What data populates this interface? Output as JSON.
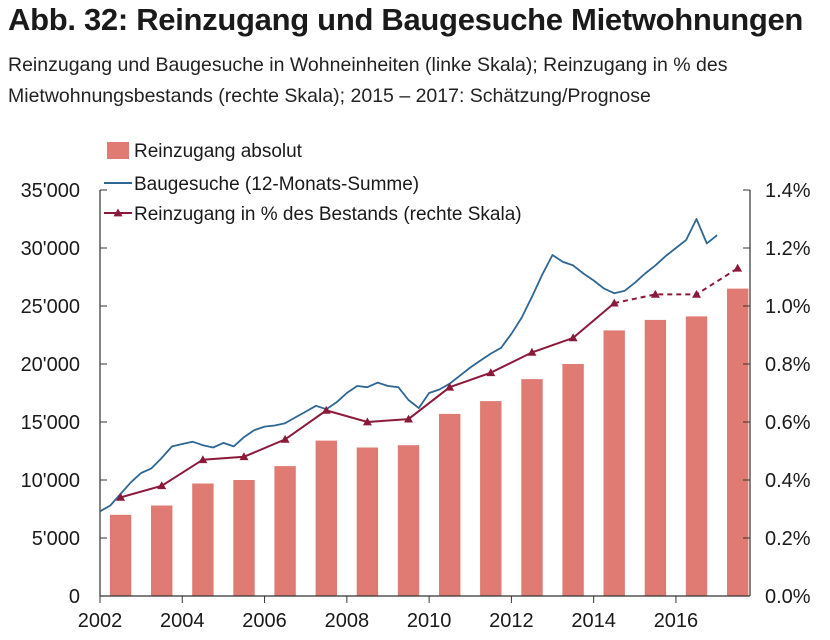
{
  "title": "Abb. 32: Reinzugang und Baugesuche Mietwohnungen",
  "subtitle": "Reinzugang und Baugesuche in Wohneinheiten (linke Skala); Reinzugang in % des Mietwohnungsbestands (rechte Skala); 2015 – 2017: Schätzung/Prognose",
  "chart_data": {
    "type": "bar+line",
    "title": "Abb. 32: Reinzugang und Baugesuche Mietwohnungen",
    "subtitle": "Reinzugang und Baugesuche in Wohneinheiten (linke Skala); Reinzugang in % des Mietwohnungsbestands (rechte Skala); 2015 – 2017: Schätzung/Prognose",
    "legend_position": "top-left",
    "grid": false,
    "x_axis": {
      "range": [
        2002,
        2017.8
      ],
      "tick_labels": [
        "2002",
        "2004",
        "2006",
        "2008",
        "2010",
        "2012",
        "2014",
        "2016"
      ]
    },
    "y_left": {
      "range": [
        0,
        35000
      ],
      "tick_labels": [
        "0",
        "5'000",
        "10'000",
        "15'000",
        "20'000",
        "25'000",
        "30'000",
        "35'000"
      ]
    },
    "y_right": {
      "range": [
        0,
        1.4
      ],
      "tick_labels": [
        "0.0%",
        "0.2%",
        "0.4%",
        "0.6%",
        "0.8%",
        "1.0%",
        "1.2%",
        "1.4%"
      ]
    },
    "bars": {
      "name": "Reinzugang absolut",
      "color": "#e07b73",
      "axis": "left",
      "x": [
        2002.5,
        2003.5,
        2004.5,
        2005.5,
        2006.5,
        2007.5,
        2008.5,
        2009.5,
        2010.5,
        2011.5,
        2012.5,
        2013.5,
        2014.5,
        2015.5,
        2016.5,
        2017.5
      ],
      "values": [
        7000,
        7800,
        9700,
        10000,
        11200,
        13400,
        12800,
        13000,
        15700,
        16800,
        18700,
        20000,
        22900,
        23800,
        24100,
        26500
      ]
    },
    "line": {
      "name": "Baugesuche (12-Monats-Summe)",
      "color": "#2e6694",
      "axis": "left",
      "x": [
        2002.0,
        2002.25,
        2002.5,
        2002.75,
        2003.0,
        2003.25,
        2003.5,
        2003.75,
        2004.0,
        2004.25,
        2004.5,
        2004.75,
        2005.0,
        2005.25,
        2005.5,
        2005.75,
        2006.0,
        2006.25,
        2006.5,
        2006.75,
        2007.0,
        2007.25,
        2007.5,
        2007.75,
        2008.0,
        2008.25,
        2008.5,
        2008.75,
        2009.0,
        2009.25,
        2009.5,
        2009.75,
        2010.0,
        2010.25,
        2010.5,
        2010.75,
        2011.0,
        2011.25,
        2011.5,
        2011.75,
        2012.0,
        2012.25,
        2012.5,
        2012.75,
        2013.0,
        2013.25,
        2013.5,
        2013.75,
        2014.0,
        2014.25,
        2014.5,
        2014.75,
        2015.0,
        2015.25,
        2015.5,
        2015.75,
        2016.0,
        2016.25,
        2016.5,
        2016.75,
        2017.0
      ],
      "values": [
        7300,
        7800,
        8800,
        9800,
        10600,
        11000,
        11900,
        12900,
        13100,
        13300,
        13000,
        12800,
        13200,
        12900,
        13700,
        14300,
        14600,
        14700,
        14900,
        15400,
        15900,
        16400,
        16100,
        16700,
        17500,
        18100,
        18000,
        18400,
        18100,
        18000,
        16900,
        16200,
        17500,
        17800,
        18300,
        19000,
        19700,
        20300,
        20900,
        21400,
        22600,
        24000,
        25800,
        27700,
        29400,
        28800,
        28500,
        27800,
        27200,
        26500,
        26100,
        26300,
        27000,
        27800,
        28500,
        29300,
        30000,
        30700,
        32500,
        30400,
        31100
      ]
    },
    "line_pct": {
      "name": "Reinzugang in % des Bestands (rechte Skala)",
      "color": "#8b1a3a",
      "axis": "right",
      "marker": "triangle",
      "x": [
        2002.5,
        2003.5,
        2004.5,
        2005.5,
        2006.5,
        2007.5,
        2008.5,
        2009.5,
        2010.5,
        2011.5,
        2012.5,
        2013.5,
        2014.5,
        2015.5,
        2016.5,
        2017.5
      ],
      "values": [
        0.34,
        0.38,
        0.47,
        0.48,
        0.54,
        0.64,
        0.6,
        0.61,
        0.72,
        0.77,
        0.84,
        0.89,
        1.01,
        1.04,
        1.04,
        1.13
      ],
      "dashed_from_x": 2014.5
    }
  }
}
